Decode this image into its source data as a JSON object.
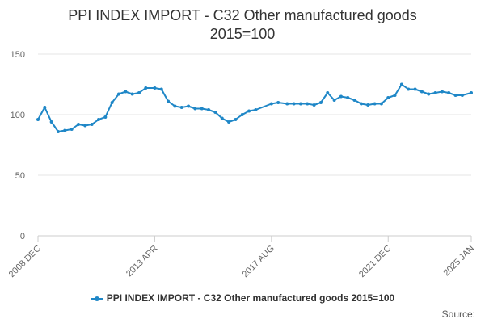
{
  "chart_data": {
    "type": "line",
    "title": "PPI INDEX IMPORT - C32 Other manufactured goods",
    "subtitle": "2015=100",
    "ylim": [
      0,
      150
    ],
    "yticks": [
      0,
      50,
      100,
      150
    ],
    "xticks": [
      "2008 DEC",
      "2013 APR",
      "2017 AUG",
      "2021 DEC",
      "2025 JAN"
    ],
    "grid": true,
    "legend_position": "bottom",
    "line_color": "#1f87c7",
    "series": [
      {
        "name": "PPI INDEX IMPORT - C32 Other manufactured goods 2015=100",
        "x": [
          "2008 DEC",
          "2009 MAR",
          "2009 JUN",
          "2009 SEP",
          "2009 DEC",
          "2010 MAR",
          "2010 JUN",
          "2010 SEP",
          "2010 DEC",
          "2011 MAR",
          "2011 JUN",
          "2011 SEP",
          "2011 DEC",
          "2012 MAR",
          "2012 JUN",
          "2012 SEP",
          "2012 DEC",
          "2013 APR",
          "2013 JUL",
          "2013 OCT",
          "2014 JAN",
          "2014 APR",
          "2014 JUL",
          "2014 OCT",
          "2015 JAN",
          "2015 APR",
          "2015 JUL",
          "2015 OCT",
          "2016 JAN",
          "2016 APR",
          "2016 JUL",
          "2016 OCT",
          "2017 JAN",
          "2017 AUG",
          "2017 NOV",
          "2018 MAR",
          "2018 JUN",
          "2018 SEP",
          "2018 DEC",
          "2019 MAR",
          "2019 JUN",
          "2019 SEP",
          "2019 DEC",
          "2020 MAR",
          "2020 JUN",
          "2020 SEP",
          "2020 DEC",
          "2021 MAR",
          "2021 JUN",
          "2021 SEP",
          "2021 DEC",
          "2022 MAR",
          "2022 JUN",
          "2022 SEP",
          "2022 DEC",
          "2023 MAR",
          "2023 JUN",
          "2023 SEP",
          "2023 DEC",
          "2024 MAR",
          "2024 JUN",
          "2024 SEP",
          "2025 JAN"
        ],
        "values": [
          96,
          106,
          94,
          86,
          87,
          88,
          92,
          91,
          92,
          96,
          98,
          110,
          117,
          119,
          117,
          118,
          122,
          122,
          121,
          111,
          107,
          106,
          107,
          105,
          105,
          104,
          102,
          97,
          94,
          96,
          100,
          103,
          104,
          109,
          110,
          109,
          109,
          109,
          109,
          108,
          110,
          118,
          112,
          115,
          114,
          112,
          109,
          108,
          109,
          109,
          114,
          116,
          125,
          121,
          121,
          119,
          117,
          118,
          119,
          118,
          116,
          116,
          118
        ]
      }
    ]
  },
  "legend": {
    "label": "PPI INDEX IMPORT - C32 Other manufactured goods 2015=100"
  },
  "source": {
    "label": "Source:"
  }
}
